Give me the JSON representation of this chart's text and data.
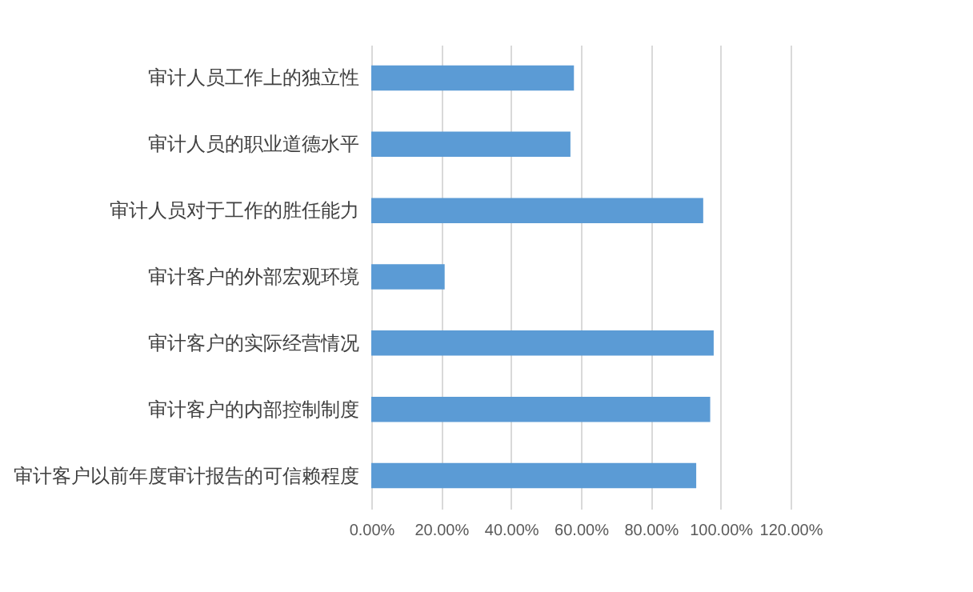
{
  "chart_data": {
    "type": "bar",
    "orientation": "horizontal",
    "categories": [
      "审计人员工作上的独立性",
      "审计人员的职业道德水平",
      "审计人员对于工作的胜任能力",
      "审计客户的外部宏观环境",
      "审计客户的实际经营情况",
      "审计客户的内部控制制度",
      "审计客户以前年度审计报告的可信赖程度"
    ],
    "values": [
      58,
      57,
      95,
      21,
      98,
      97,
      93
    ],
    "color": "#5b9bd5",
    "xlim": [
      0,
      120
    ],
    "xticks": [
      {
        "value": 0,
        "label": "0.00%"
      },
      {
        "value": 20,
        "label": "20.00%"
      },
      {
        "value": 40,
        "label": "40.00%"
      },
      {
        "value": 60,
        "label": "60.00%"
      },
      {
        "value": 80,
        "label": "80.00%"
      },
      {
        "value": 100,
        "label": "100.00%"
      },
      {
        "value": 120,
        "label": "120.00%"
      }
    ],
    "grid": "x"
  }
}
